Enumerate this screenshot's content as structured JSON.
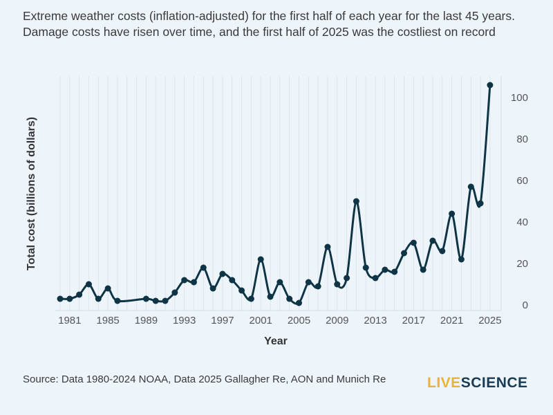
{
  "chart_data": {
    "type": "line",
    "title": "Extreme weather costs (inflation-adjusted) for the first half of each year for the last 45 years. Damage costs have risen over time, and the first half of 2025 was the costliest on record",
    "xlabel": "Year",
    "ylabel": "Total cost (billions of dollars)",
    "xlim": [
      1980,
      2025
    ],
    "ylim": [
      0,
      108
    ],
    "xticks": [
      1981,
      1985,
      1989,
      1993,
      1997,
      2001,
      2005,
      2009,
      2013,
      2017,
      2021,
      2025
    ],
    "yticks": [
      0,
      20,
      40,
      60,
      80,
      100
    ],
    "grid": "vertical",
    "color": "#0e3445",
    "x": [
      1980,
      1981,
      1982,
      1983,
      1984,
      1985,
      1986,
      1989,
      1990,
      1991,
      1992,
      1993,
      1994,
      1995,
      1996,
      1997,
      1998,
      1999,
      2000,
      2001,
      2002,
      2003,
      2004,
      2005,
      2006,
      2007,
      2008,
      2009,
      2010,
      2011,
      2012,
      2013,
      2014,
      2015,
      2016,
      2017,
      2018,
      2019,
      2020,
      2021,
      2022,
      2023,
      2024,
      2025
    ],
    "y": [
      3,
      3,
      5,
      10,
      3,
      8,
      2,
      3,
      2,
      2,
      6,
      12,
      11,
      18,
      8,
      15,
      12,
      7,
      3,
      22,
      4,
      11,
      3,
      1,
      11,
      9,
      28,
      10,
      13,
      50,
      18,
      13,
      17,
      16,
      25,
      30,
      17,
      31,
      26,
      44,
      22,
      57,
      49,
      106
    ]
  },
  "source": "Source: Data 1980-2024 NOAA, Data 2025 Gallagher Re, AON and Munich Re",
  "logo": {
    "part1": "LIVE",
    "part2": "SCIENCE"
  }
}
